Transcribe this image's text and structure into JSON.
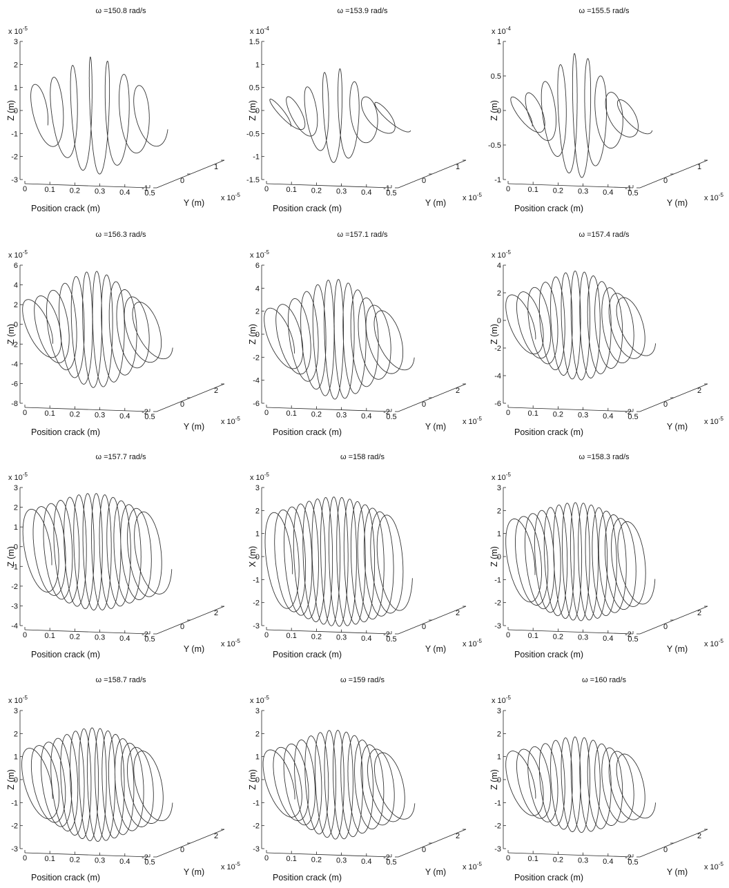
{
  "chart_data": [
    {
      "type": "line",
      "title": "ω =150.8 rad/s",
      "xlabel": "Position crack (m)",
      "ylabel": "Z (m)",
      "zlabel": "Y (m)",
      "x_ticks": [
        "0",
        "0.1",
        "0.2",
        "0.3",
        "0.4",
        "0.5"
      ],
      "y_ticks": [
        "-1",
        "0",
        "1"
      ],
      "y_exponent_base": "x 10",
      "y_exponent": "-5",
      "z_ticks": [
        "-3",
        "-2",
        "-1",
        "0",
        "1",
        "2",
        "3"
      ],
      "z_exponent_base": "x 10",
      "z_exponent": "-5",
      "xlim": [
        0,
        0.5
      ],
      "ylim": [
        -1,
        1
      ],
      "zlim": [
        -3,
        3
      ],
      "shape": {
        "loops": 7,
        "amplitude": 2.6,
        "y_amplitude": 0.9,
        "end_amplitude": 1.0,
        "taper": 1.3
      }
    },
    {
      "type": "line",
      "title": "ω =153.9 rad/s",
      "xlabel": "Position crack (m)",
      "ylabel": "Z (m)",
      "zlabel": "Y (m)",
      "x_ticks": [
        "0",
        "0.1",
        "0.2",
        "0.3",
        "0.4",
        "0.5"
      ],
      "y_ticks": [
        "-1",
        "0",
        "1"
      ],
      "y_exponent_base": "x 10",
      "y_exponent": "-5",
      "z_ticks": [
        "-1.5",
        "-1",
        "-0.5",
        "0",
        "0.5",
        "1",
        "1.5"
      ],
      "z_exponent_base": "x 10",
      "z_exponent": "-4",
      "xlim": [
        0,
        0.5
      ],
      "ylim": [
        -1,
        1
      ],
      "zlim": [
        -1.5,
        1.5
      ],
      "shape": {
        "loops": 8,
        "amplitude": 1.05,
        "y_amplitude": 0.95,
        "end_amplitude": 0.12,
        "taper": 2.0
      }
    },
    {
      "type": "line",
      "title": "ω =155.5 rad/s",
      "xlabel": "Position crack (m)",
      "ylabel": "Z (m)",
      "zlabel": "Y (m)",
      "x_ticks": [
        "0",
        "0.1",
        "0.2",
        "0.3",
        "0.4",
        "0.5"
      ],
      "y_ticks": [
        "-1",
        "0",
        "1"
      ],
      "y_exponent_base": "x 10",
      "y_exponent": "-5",
      "z_ticks": [
        "-1",
        "-0.5",
        "0",
        "0.5",
        "1"
      ],
      "z_exponent_base": "x 10",
      "z_exponent": "-4",
      "xlim": [
        0,
        0.5
      ],
      "ylim": [
        -1,
        1
      ],
      "zlim": [
        -1,
        1
      ],
      "shape": {
        "loops": 9,
        "amplitude": 0.92,
        "y_amplitude": 0.95,
        "end_amplitude": 0.12,
        "taper": 1.8
      }
    },
    {
      "type": "line",
      "title": "ω =156.3 rad/s",
      "xlabel": "Position crack (m)",
      "ylabel": "Z (m)",
      "zlabel": "Y (m)",
      "x_ticks": [
        "0",
        "0.1",
        "0.2",
        "0.3",
        "0.4",
        "0.5"
      ],
      "y_ticks": [
        "-2",
        "0",
        "2"
      ],
      "y_exponent_base": "x 10",
      "y_exponent": "-5",
      "z_ticks": [
        "-8",
        "-6",
        "-4",
        "-2",
        "0",
        "2",
        "4",
        "6"
      ],
      "z_exponent_base": "x 10",
      "z_exponent": "-5",
      "xlim": [
        0,
        0.5
      ],
      "ylim": [
        -2,
        2
      ],
      "zlim": [
        -8,
        6
      ],
      "shape": {
        "loops": 12,
        "amplitude": 6.0,
        "y_amplitude": 1.3,
        "end_amplitude": 1.6,
        "taper": 1.0
      }
    },
    {
      "type": "line",
      "title": "ω =157.1 rad/s",
      "xlabel": "Position crack (m)",
      "ylabel": "Z (m)",
      "zlabel": "Y (m)",
      "x_ticks": [
        "0",
        "0.1",
        "0.2",
        "0.3",
        "0.4",
        "0.5"
      ],
      "y_ticks": [
        "-2",
        "0",
        "2"
      ],
      "y_exponent_base": "x 10",
      "y_exponent": "-5",
      "z_ticks": [
        "-6",
        "-4",
        "-2",
        "0",
        "2",
        "4",
        "6"
      ],
      "z_exponent_base": "x 10",
      "z_exponent": "-5",
      "xlim": [
        0,
        0.5
      ],
      "ylim": [
        -2,
        2
      ],
      "zlim": [
        -6,
        6
      ],
      "shape": {
        "loops": 12,
        "amplitude": 5.3,
        "y_amplitude": 1.3,
        "end_amplitude": 1.5,
        "taper": 1.0
      }
    },
    {
      "type": "line",
      "title": "ω =157.4 rad/s",
      "xlabel": "Position crack (m)",
      "ylabel": "Z (m)",
      "zlabel": "Y (m)",
      "x_ticks": [
        "0",
        "0.1",
        "0.2",
        "0.3",
        "0.4",
        "0.5"
      ],
      "y_ticks": [
        "-2",
        "0",
        "2"
      ],
      "y_exponent_base": "x 10",
      "y_exponent": "-5",
      "z_ticks": [
        "-6",
        "-4",
        "-2",
        "0",
        "2",
        "4"
      ],
      "z_exponent_base": "x 10",
      "z_exponent": "-5",
      "xlim": [
        0,
        0.5
      ],
      "ylim": [
        -2,
        2
      ],
      "zlim": [
        -6,
        4
      ],
      "shape": {
        "loops": 13,
        "amplitude": 4.0,
        "y_amplitude": 1.3,
        "end_amplitude": 1.2,
        "taper": 0.9
      }
    },
    {
      "type": "line",
      "title": "ω =157.7 rad/s",
      "xlabel": "Position crack (m)",
      "ylabel": "Z (m)",
      "zlabel": "Y (m)",
      "x_ticks": [
        "0",
        "0.1",
        "0.2",
        "0.3",
        "0.4",
        "0.5"
      ],
      "y_ticks": [
        "-2",
        "0",
        "2"
      ],
      "y_exponent_base": "x 10",
      "y_exponent": "-5",
      "z_ticks": [
        "-4",
        "-3",
        "-2",
        "-1",
        "0",
        "1",
        "2",
        "3"
      ],
      "z_exponent_base": "x 10",
      "z_exponent": "-5",
      "xlim": [
        0,
        0.5
      ],
      "ylim": [
        -2,
        2
      ],
      "zlim": [
        -4,
        3
      ],
      "shape": {
        "loops": 14,
        "amplitude": 3.0,
        "y_amplitude": 1.4,
        "end_amplitude": 1.4,
        "taper": 0.6
      }
    },
    {
      "type": "line",
      "title": "ω =158 rad/s",
      "xlabel": "Position crack (m)",
      "ylabel": "X (m)",
      "zlabel": "Y (m)",
      "x_ticks": [
        "0",
        "0.1",
        "0.2",
        "0.3",
        "0.4",
        "0.5"
      ],
      "y_ticks": [
        "-2",
        "0",
        "2"
      ],
      "y_exponent_base": "x 10",
      "y_exponent": "-5",
      "z_ticks": [
        "-3",
        "-2",
        "-1",
        "0",
        "1",
        "2",
        "3"
      ],
      "z_exponent_base": "x 10",
      "z_exponent": "-5",
      "xlim": [
        0,
        0.5
      ],
      "ylim": [
        -2,
        2
      ],
      "zlim": [
        -3,
        3
      ],
      "shape": {
        "loops": 15,
        "amplitude": 2.85,
        "y_amplitude": 1.4,
        "end_amplitude": 1.4,
        "taper": 0.5
      }
    },
    {
      "type": "line",
      "title": "ω =158.3 rad/s",
      "xlabel": "Position crack (m)",
      "ylabel": "Z (m)",
      "zlabel": "Y (m)",
      "x_ticks": [
        "0",
        "0.1",
        "0.2",
        "0.3",
        "0.4",
        "0.5"
      ],
      "y_ticks": [
        "-2",
        "0",
        "2"
      ],
      "y_exponent_base": "x 10",
      "y_exponent": "-5",
      "z_ticks": [
        "-3",
        "-2",
        "-1",
        "0",
        "1",
        "2",
        "3"
      ],
      "z_exponent_base": "x 10",
      "z_exponent": "-5",
      "xlim": [
        0,
        0.5
      ],
      "ylim": [
        -2,
        2
      ],
      "zlim": [
        -3,
        3
      ],
      "shape": {
        "loops": 15,
        "amplitude": 2.6,
        "y_amplitude": 1.4,
        "end_amplitude": 1.2,
        "taper": 0.6
      }
    },
    {
      "type": "line",
      "title": "ω =158.7 rad/s",
      "xlabel": "Position crack (m)",
      "ylabel": "Z (m)",
      "zlabel": "Y (m)",
      "x_ticks": [
        "0",
        "0.1",
        "0.2",
        "0.3",
        "0.4",
        "0.5"
      ],
      "y_ticks": [
        "-2",
        "0",
        "2"
      ],
      "y_exponent_base": "x 10",
      "y_exponent": "-5",
      "z_ticks": [
        "-3",
        "-2",
        "-1",
        "0",
        "1",
        "2",
        "3"
      ],
      "z_exponent_base": "x 10",
      "z_exponent": "-5",
      "xlim": [
        0,
        0.5
      ],
      "ylim": [
        -2,
        2
      ],
      "zlim": [
        -3,
        3
      ],
      "shape": {
        "loops": 15,
        "amplitude": 2.5,
        "y_amplitude": 1.4,
        "end_amplitude": 0.9,
        "taper": 0.7
      }
    },
    {
      "type": "line",
      "title": "ω =159 rad/s",
      "xlabel": "Position crack (m)",
      "ylabel": "Z (m)",
      "zlabel": "Y (m)",
      "x_ticks": [
        "0",
        "0.1",
        "0.2",
        "0.3",
        "0.4",
        "0.5"
      ],
      "y_ticks": [
        "-2",
        "0",
        "2"
      ],
      "y_exponent_base": "x 10",
      "y_exponent": "-5",
      "z_ticks": [
        "-3",
        "-2",
        "-1",
        "0",
        "1",
        "2",
        "3"
      ],
      "z_exponent_base": "x 10",
      "z_exponent": "-5",
      "xlim": [
        0,
        0.5
      ],
      "ylim": [
        -2,
        2
      ],
      "zlim": [
        -3,
        3
      ],
      "shape": {
        "loops": 14,
        "amplitude": 2.4,
        "y_amplitude": 1.4,
        "end_amplitude": 0.9,
        "taper": 0.8
      }
    },
    {
      "type": "line",
      "title": "ω =160 rad/s",
      "xlabel": "Position crack (m)",
      "ylabel": "Z (m)",
      "zlabel": "Y (m)",
      "x_ticks": [
        "0",
        "0.1",
        "0.2",
        "0.3",
        "0.4",
        "0.5"
      ],
      "y_ticks": [
        "-2",
        "0",
        "2"
      ],
      "y_exponent_base": "x 10",
      "y_exponent": "-5",
      "z_ticks": [
        "-3",
        "-2",
        "-1",
        "0",
        "1",
        "2",
        "3"
      ],
      "z_exponent_base": "x 10",
      "z_exponent": "-5",
      "xlim": [
        0,
        0.5
      ],
      "ylim": [
        -2,
        2
      ],
      "zlim": [
        -3,
        3
      ],
      "shape": {
        "loops": 13,
        "amplitude": 2.1,
        "y_amplitude": 1.3,
        "end_amplitude": 1.0,
        "taper": 0.9
      }
    }
  ]
}
